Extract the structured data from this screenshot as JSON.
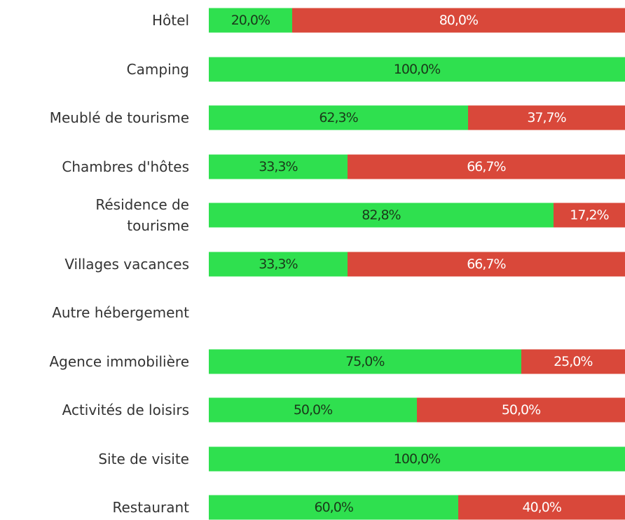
{
  "chart_data": {
    "type": "bar",
    "orientation": "horizontal",
    "stacked": true,
    "categories": [
      "Hôtel",
      "Camping",
      "Meublé de tourisme",
      "Chambres d'hôtes",
      "Résidence de tourisme",
      "Villages vacances",
      "Autre hébergement",
      "Agence immobilière",
      "Activités de loisirs",
      "Site de visite",
      "Restaurant"
    ],
    "series": [
      {
        "color": "#2fe04f",
        "label_color": "#1a3a1a",
        "values": [
          20.0,
          100.0,
          62.3,
          33.3,
          82.8,
          33.3,
          null,
          75.0,
          50.0,
          100.0,
          60.0
        ],
        "value_labels": [
          "20,0%",
          "100,0%",
          "62,3%",
          "33,3%",
          "82,8%",
          "33,3%",
          null,
          "75,0%",
          "50,0%",
          "100,0%",
          "60,0%"
        ]
      },
      {
        "color": "#d9483a",
        "label_color": "#ffffff",
        "values": [
          80.0,
          0,
          37.7,
          66.7,
          17.2,
          66.7,
          null,
          25.0,
          50.0,
          0,
          40.0
        ],
        "value_labels": [
          "80,0%",
          null,
          "37,7%",
          "66,7%",
          "17,2%",
          "66,7%",
          null,
          "25,0%",
          "50,0%",
          null,
          "40,0%"
        ]
      }
    ],
    "xlim": [
      0,
      100
    ]
  }
}
